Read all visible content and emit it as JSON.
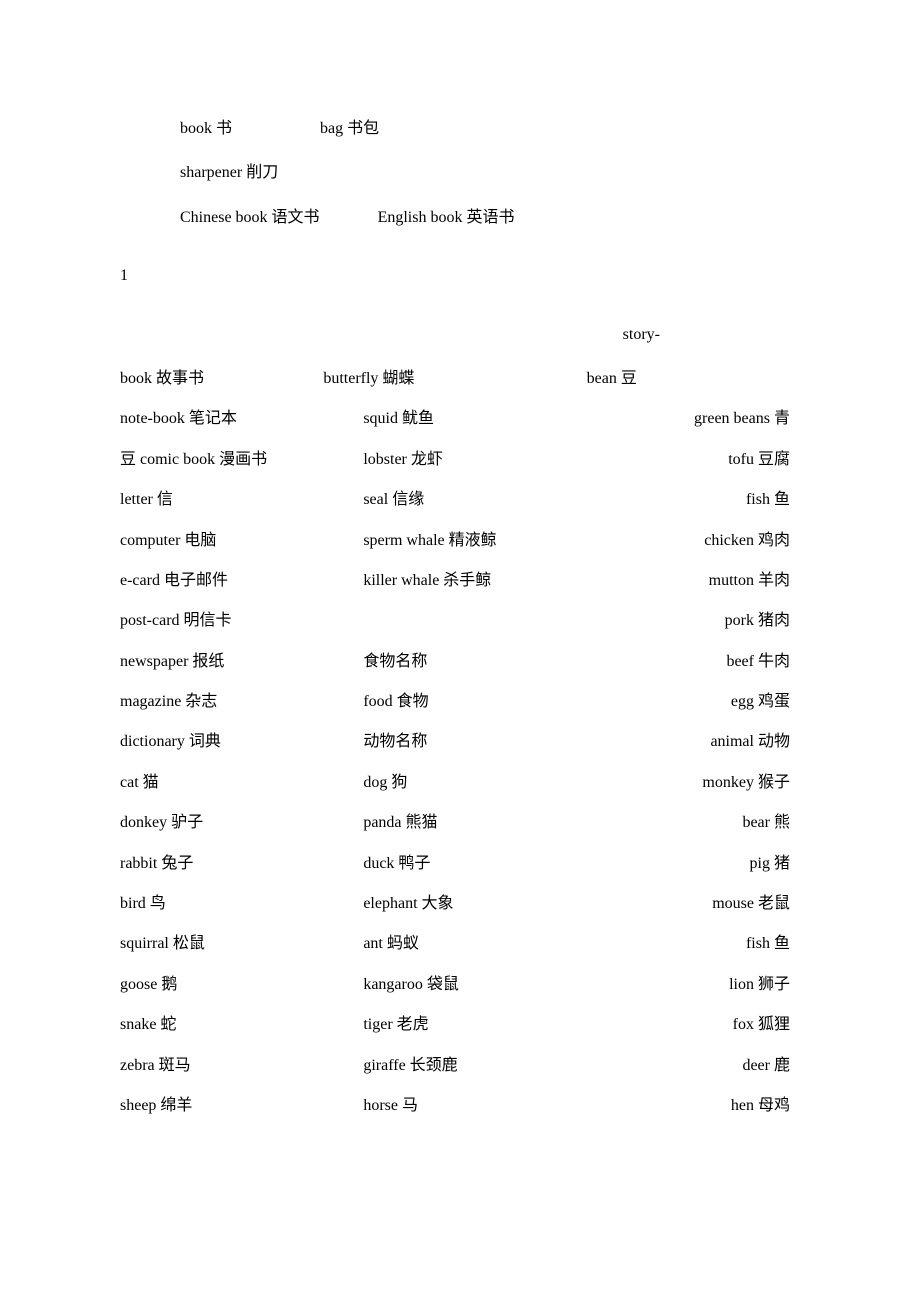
{
  "top": {
    "line1_a": "book 书",
    "line1_b": "bag 书包",
    "line2": "sharpener 削刀",
    "line3_a": "Chinese book 语文书",
    "line3_b": "English book 英语书"
  },
  "pageNumber": "1",
  "story_prefix": "story-",
  "row_wrap": {
    "a": "book 故事书",
    "b": "butterfly 蝴蝶",
    "c": "bean 豆"
  },
  "rows": [
    {
      "c1": "note-book 笔记本",
      "c2": "squid 鱿鱼",
      "c3": "green beans 青"
    },
    {
      "c1": "豆 comic book 漫画书",
      "c2": "lobster 龙虾",
      "c3": "tofu 豆腐"
    },
    {
      "c1": "letter 信",
      "c2": "seal 信缘",
      "c3": "fish 鱼"
    },
    {
      "c1": "computer 电脑",
      "c2": "sperm whale 精液鲸",
      "c3": "chicken 鸡肉"
    },
    {
      "c1": "e-card 电子邮件",
      "c2": "killer whale 杀手鲸",
      "c3": "mutton 羊肉"
    },
    {
      "c1": "post-card 明信卡",
      "c2": "",
      "c3": "pork 猪肉"
    },
    {
      "c1": "newspaper 报纸",
      "c2": "食物名称",
      "c3": "beef 牛肉"
    },
    {
      "c1": "magazine 杂志",
      "c2": "food 食物",
      "c3": "egg 鸡蛋"
    },
    {
      "c1": "dictionary 词典",
      "c2": "动物名称",
      "c3": "animal 动物"
    },
    {
      "c1": "cat 猫",
      "c2": "dog 狗",
      "c3": "monkey 猴子"
    },
    {
      "c1": "donkey 驴子",
      "c2": "panda 熊猫",
      "c3": "bear 熊"
    },
    {
      "c1": "rabbit 兔子",
      "c2": "duck 鸭子",
      "c3": "pig 猪"
    },
    {
      "c1": "bird 鸟",
      "c2": "elephant 大象",
      "c3": "mouse 老鼠"
    },
    {
      "c1": "squirral 松鼠",
      "c2": "ant 蚂蚁",
      "c3": "fish 鱼"
    },
    {
      "c1": "goose 鹅",
      "c2": "kangaroo 袋鼠",
      "c3": "lion 狮子"
    },
    {
      "c1": "snake 蛇",
      "c2": "tiger 老虎",
      "c3": "fox 狐狸"
    },
    {
      "c1": "zebra 斑马",
      "c2": "giraffe 长颈鹿",
      "c3": "deer 鹿"
    },
    {
      "c1": "sheep 绵羊",
      "c2": "horse 马",
      "c3": "hen 母鸡"
    }
  ]
}
